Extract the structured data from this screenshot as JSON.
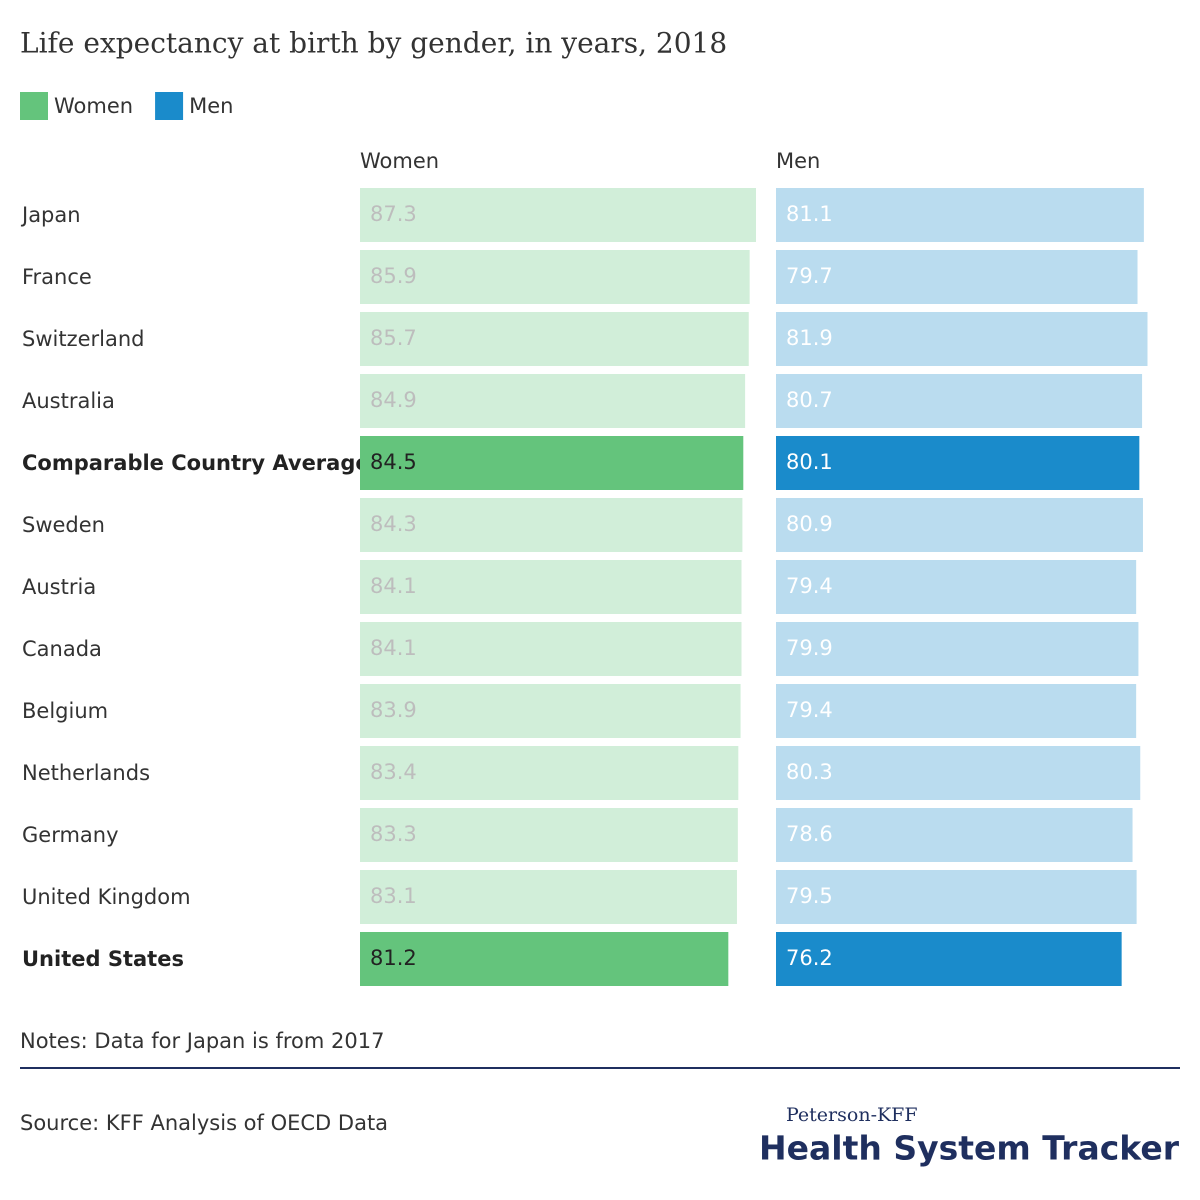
{
  "chart_data": {
    "type": "paired-bar",
    "title": "Life expectancy at birth by gender, in years, 2018",
    "categories": [
      "Japan",
      "France",
      "Switzerland",
      "Australia",
      "Comparable Country Average",
      "Sweden",
      "Austria",
      "Canada",
      "Belgium",
      "Netherlands",
      "Germany",
      "United Kingdom",
      "United States"
    ],
    "highlight_categories": [
      "Comparable Country Average",
      "United States"
    ],
    "series": [
      {
        "name": "Women",
        "color": "#64c47c",
        "muted_color": "#d1eed9",
        "values": [
          87.3,
          85.9,
          85.7,
          84.9,
          84.5,
          84.3,
          84.1,
          84.1,
          83.9,
          83.4,
          83.3,
          83.1,
          81.2
        ]
      },
      {
        "name": "Men",
        "color": "#1a8bcb",
        "muted_color": "#badcef",
        "values": [
          81.1,
          79.7,
          81.9,
          80.7,
          80.1,
          80.9,
          79.4,
          79.9,
          79.4,
          80.3,
          78.6,
          79.5,
          76.2
        ]
      }
    ],
    "notes": "Notes: Data for Japan is from 2017",
    "source": "Source: KFF Analysis of OECD Data"
  },
  "branding": {
    "line1": "Peterson-KFF",
    "line2": "Health System Tracker"
  }
}
